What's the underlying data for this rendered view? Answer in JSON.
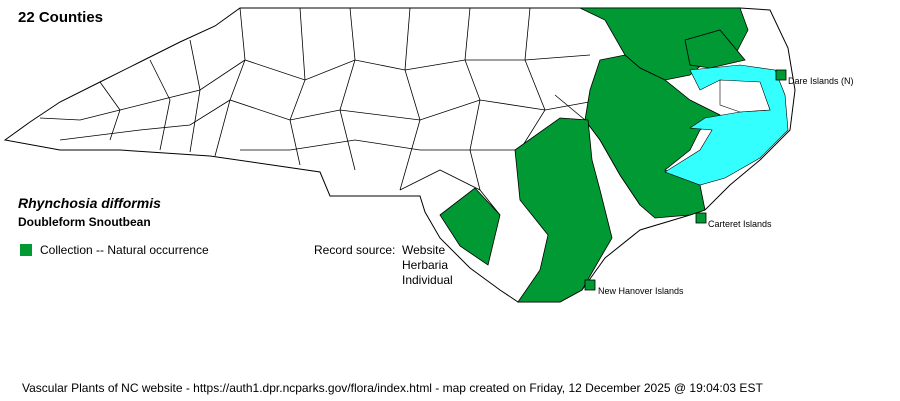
{
  "title": "22 Counties",
  "species": {
    "scientific_name": "Rhynchosia difformis",
    "common_name": "Doubleform Snoutbean"
  },
  "legend": [
    {
      "label": "Collection -- Natural occurrence",
      "color": "#009933"
    }
  ],
  "record_source": {
    "label": "Record source:",
    "sources": [
      "Website",
      "Herbaria",
      "Individual"
    ]
  },
  "islands": [
    {
      "label": "Dare Islands (N)",
      "present": true
    },
    {
      "label": "Carteret Islands",
      "present": true
    },
    {
      "label": "New Hanover Islands",
      "present": true
    }
  ],
  "colors": {
    "occurrence": "#009933",
    "water": "#33ffff",
    "county_fill": "#ffffff",
    "border": "#000000"
  },
  "footer": "Vascular Plants of NC website - https://auth1.dpr.ncparks.gov/flora/index.html - map created on Friday, 12 December 2025 @ 19:04:03 EST"
}
